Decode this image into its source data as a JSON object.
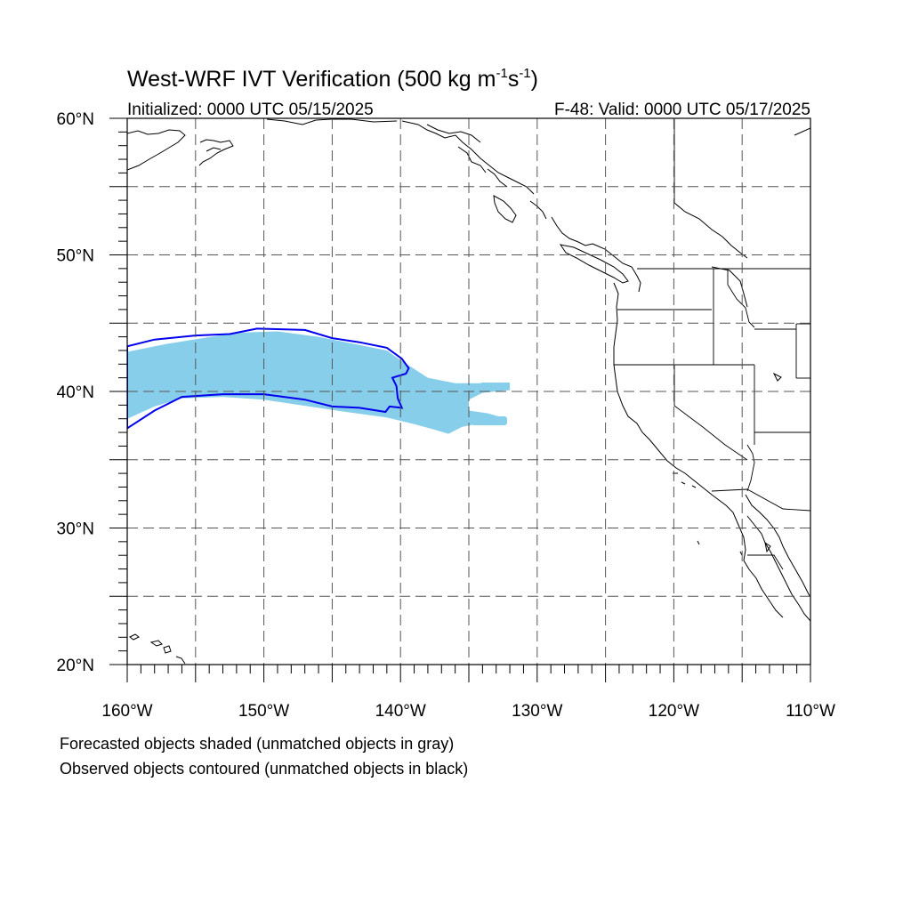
{
  "figure": {
    "title": "West-WRF IVT Verification (500 kg m",
    "title_sup1": "-1",
    "title_mid": "s",
    "title_sup2": "-1",
    "title_end": ")",
    "initialized": "Initialized: 0000 UTC 05/15/2025",
    "valid": "F-48: Valid: 0000 UTC 05/17/2025",
    "caption_line1": "Forecasted objects shaded (unmatched objects in gray)",
    "caption_line2": "Observed objects contoured (unmatched objects in black)"
  },
  "map": {
    "projection": "cylindrical equidistant",
    "lon_range": [
      -160,
      -110
    ],
    "lat_range": [
      20,
      60
    ],
    "grid": "dashed every 5 degrees",
    "lon_labels": [
      {
        "lon": -160,
        "text": "160°W"
      },
      {
        "lon": -150,
        "text": "150°W"
      },
      {
        "lon": -140,
        "text": "140°W"
      },
      {
        "lon": -130,
        "text": "130°W"
      },
      {
        "lon": -120,
        "text": "120°W"
      },
      {
        "lon": -110,
        "text": "110°W"
      }
    ],
    "lat_labels": [
      {
        "lat": 60,
        "text": "60°N"
      },
      {
        "lat": 50,
        "text": "50°N"
      },
      {
        "lat": 40,
        "text": "40°N"
      },
      {
        "lat": 30,
        "text": "30°N"
      },
      {
        "lat": 20,
        "text": "20°N"
      }
    ],
    "colors": {
      "forecast_fill": "#87ceeb",
      "observed_contour": "#0000ee",
      "coastline": "#000000",
      "grid": "#555555"
    },
    "forecast_object": [
      [
        -160,
        42.9
      ],
      [
        -157,
        43.5
      ],
      [
        -152,
        44.3
      ],
      [
        -149,
        44.4
      ],
      [
        -146,
        44.0
      ],
      [
        -143,
        43.4
      ],
      [
        -141,
        43.0
      ],
      [
        -140,
        42.3
      ],
      [
        -138,
        41.0
      ],
      [
        -136,
        40.6
      ],
      [
        -134,
        40.6
      ],
      [
        -133.5,
        40.5
      ],
      [
        -132,
        40.5
      ],
      [
        -132,
        40.1
      ],
      [
        -134,
        39.9
      ],
      [
        -135,
        39.4
      ],
      [
        -135,
        38.6
      ],
      [
        -133.6,
        38.4
      ],
      [
        -132.2,
        38.0
      ],
      [
        -132.5,
        37.6
      ],
      [
        -134.5,
        37.6
      ],
      [
        -135.5,
        37.4
      ],
      [
        -136.5,
        36.9
      ],
      [
        -137.5,
        37.2
      ],
      [
        -139,
        37.6
      ],
      [
        -141,
        38.1
      ],
      [
        -144,
        38.5
      ],
      [
        -150,
        39.4
      ],
      [
        -153,
        39.6
      ],
      [
        -156,
        39.5
      ],
      [
        -158,
        38.9
      ],
      [
        -160,
        38.0
      ]
    ],
    "observed_object": [
      [
        -160,
        43.3
      ],
      [
        -158,
        43.8
      ],
      [
        -155,
        44.1
      ],
      [
        -152.5,
        44.2
      ],
      [
        -150.5,
        44.6
      ],
      [
        -147,
        44.5
      ],
      [
        -145,
        43.9
      ],
      [
        -143,
        43.6
      ],
      [
        -141,
        43.2
      ],
      [
        -139.9,
        42.4
      ],
      [
        -139.4,
        41.7
      ],
      [
        -139.6,
        41.3
      ],
      [
        -140.6,
        41.0
      ],
      [
        -140.3,
        40.4
      ],
      [
        -140.2,
        39.5
      ],
      [
        -139.9,
        38.8
      ],
      [
        -140.8,
        38.9
      ],
      [
        -141.1,
        38.5
      ],
      [
        -143,
        38.8
      ],
      [
        -145,
        38.9
      ],
      [
        -147,
        39.4
      ],
      [
        -150,
        39.8
      ],
      [
        -153,
        39.8
      ],
      [
        -156,
        39.6
      ],
      [
        -158,
        38.6
      ],
      [
        -160,
        37.3
      ]
    ]
  }
}
